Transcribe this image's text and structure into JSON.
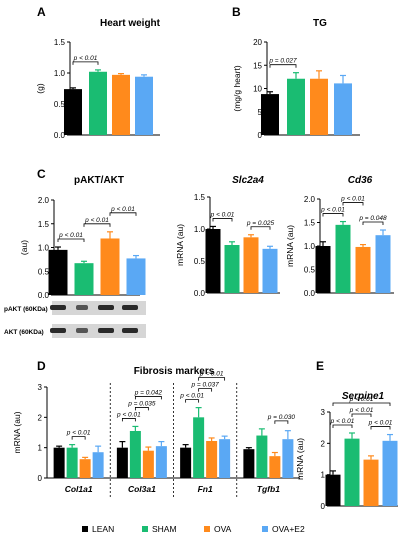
{
  "colors": {
    "LEAN": "#000000",
    "SHAM": "#1abc72",
    "OVA": "#ff8a1c",
    "OVA+E2": "#5aa8f4"
  },
  "panel_letters": [
    "A",
    "B",
    "C",
    "D",
    "E"
  ],
  "legend": [
    "LEAN",
    "SHAM",
    "OVA",
    "OVA+E2"
  ],
  "blots": {
    "pakt_label": "pAKT (60KDa)",
    "akt_label": "AKT (60KDa)"
  },
  "chart_data": [
    {
      "id": "A",
      "type": "bar",
      "title": "Heart weight",
      "title_italic": false,
      "xlabel": "",
      "ylabel": "(g)",
      "ylim": [
        0,
        1.5
      ],
      "yticks": [
        "0.0",
        "0.5",
        "1.0",
        "1.5"
      ],
      "categories": [
        "LEAN",
        "SHAM",
        "OVA",
        "OVA+E2"
      ],
      "values": [
        0.74,
        1.02,
        0.97,
        0.94
      ],
      "errors": [
        0.02,
        0.03,
        0.02,
        0.03
      ],
      "annotations": [
        {
          "text": "p < 0.01",
          "from": "LEAN",
          "to": "SHAM"
        }
      ]
    },
    {
      "id": "B",
      "type": "bar",
      "title": "TG",
      "title_italic": false,
      "xlabel": "",
      "ylabel": "(mg/g heart)",
      "ylim": [
        0,
        20
      ],
      "yticks": [
        "0",
        "5",
        "10",
        "15",
        "20"
      ],
      "categories": [
        "LEAN",
        "SHAM",
        "OVA",
        "OVA+E2"
      ],
      "values": [
        8.8,
        12.1,
        12.1,
        11.1
      ],
      "errors": [
        0.5,
        1.3,
        1.7,
        1.7
      ],
      "annotations": [
        {
          "text": "p = 0.027",
          "from": "LEAN",
          "to": "SHAM"
        }
      ]
    },
    {
      "id": "C1",
      "type": "bar",
      "title": "pAKT/AKT",
      "title_italic": false,
      "xlabel": "",
      "ylabel": "(au)",
      "ylim": [
        0,
        2.0
      ],
      "yticks": [
        "0.0",
        "0.5",
        "1.0",
        "1.5",
        "2.0"
      ],
      "categories": [
        "LEAN",
        "SHAM",
        "OVA",
        "OVA+E2"
      ],
      "values": [
        0.95,
        0.67,
        1.19,
        0.77
      ],
      "errors": [
        0.06,
        0.04,
        0.14,
        0.06
      ],
      "annotations": [
        {
          "text": "p < 0.01",
          "from": "LEAN",
          "to": "SHAM"
        },
        {
          "text": "p < 0.01",
          "from": "SHAM",
          "to": "OVA"
        },
        {
          "text": "p < 0.01",
          "from": "OVA",
          "to": "OVA+E2"
        }
      ]
    },
    {
      "id": "C2",
      "type": "bar",
      "title": "Slc2a4",
      "title_italic": true,
      "xlabel": "",
      "ylabel": "mRNA (au)",
      "ylim": [
        0,
        1.5
      ],
      "yticks": [
        "0.0",
        "0.5",
        "1.0",
        "1.5"
      ],
      "categories": [
        "LEAN",
        "SHAM",
        "OVA",
        "OVA+E2"
      ],
      "values": [
        1.0,
        0.75,
        0.87,
        0.69
      ],
      "errors": [
        0.04,
        0.05,
        0.04,
        0.04
      ],
      "annotations": [
        {
          "text": "p < 0.01",
          "from": "LEAN",
          "to": "SHAM"
        },
        {
          "text": "p = 0.025",
          "from": "OVA",
          "to": "OVA+E2"
        }
      ]
    },
    {
      "id": "C3",
      "type": "bar",
      "title": "Cd36",
      "title_italic": true,
      "xlabel": "",
      "ylabel": "mRNA (au)",
      "ylim": [
        0,
        2.0
      ],
      "yticks": [
        "0.0",
        "0.5",
        "1.0",
        "1.5",
        "2.0"
      ],
      "categories": [
        "LEAN",
        "SHAM",
        "OVA",
        "OVA+E2"
      ],
      "values": [
        1.0,
        1.45,
        0.98,
        1.23
      ],
      "errors": [
        0.09,
        0.07,
        0.05,
        0.11
      ],
      "annotations": [
        {
          "text": "p < 0.01",
          "from": "LEAN",
          "to": "SHAM"
        },
        {
          "text": "p < 0.01",
          "from": "SHAM",
          "to": "OVA"
        },
        {
          "text": "p = 0.048",
          "from": "OVA",
          "to": "OVA+E2"
        }
      ]
    },
    {
      "id": "D",
      "type": "bar",
      "title": "Fibrosis markers",
      "title_italic": false,
      "xlabel": "",
      "ylabel": "mRNA (au)",
      "ylim": [
        0,
        3
      ],
      "yticks": [
        "0",
        "1",
        "2",
        "3"
      ],
      "series_names": [
        "LEAN",
        "SHAM",
        "OVA",
        "OVA+E2"
      ],
      "groups": [
        {
          "label": "Col1a1",
          "values": [
            1.0,
            1.0,
            0.62,
            0.85
          ],
          "errors": [
            0.05,
            0.1,
            0.06,
            0.2
          ],
          "annotations": [
            {
              "text": "p < 0.01",
              "from": "SHAM",
              "to": "OVA"
            }
          ]
        },
        {
          "label": "Col3a1",
          "values": [
            1.0,
            1.55,
            0.9,
            1.05
          ],
          "errors": [
            0.2,
            0.15,
            0.12,
            0.15
          ],
          "annotations": [
            {
              "text": "p < 0.01",
              "from": "LEAN",
              "to": "SHAM"
            },
            {
              "text": "p = 0.035",
              "from": "SHAM",
              "to": "OVA"
            },
            {
              "text": "p = 0.042",
              "from": "SHAM",
              "to": "OVA+E2"
            }
          ]
        },
        {
          "label": "Fn1",
          "values": [
            1.0,
            2.0,
            1.22,
            1.28
          ],
          "errors": [
            0.1,
            0.32,
            0.1,
            0.1
          ],
          "annotations": [
            {
              "text": "p < 0.01",
              "from": "LEAN",
              "to": "SHAM"
            },
            {
              "text": "p = 0.037",
              "from": "SHAM",
              "to": "OVA"
            },
            {
              "text": "p < 0.01",
              "from": "SHAM",
              "to": "OVA+E2"
            }
          ]
        },
        {
          "label": "Tgfb1",
          "values": [
            0.95,
            1.4,
            0.72,
            1.28
          ],
          "errors": [
            0.05,
            0.22,
            0.12,
            0.28
          ],
          "annotations": [
            {
              "text": "p = 0.030",
              "from": "OVA",
              "to": "OVA+E2"
            }
          ]
        }
      ]
    },
    {
      "id": "E",
      "type": "bar",
      "title": "Serpine1",
      "title_italic": true,
      "xlabel": "",
      "ylabel": "mRNA (au)",
      "ylim": [
        0,
        3
      ],
      "yticks": [
        "0",
        "1",
        "2",
        "3"
      ],
      "categories": [
        "LEAN",
        "SHAM",
        "OVA",
        "OVA+E2"
      ],
      "values": [
        1.0,
        2.15,
        1.48,
        2.08
      ],
      "errors": [
        0.12,
        0.18,
        0.12,
        0.2
      ],
      "annotations": [
        {
          "text": "p < 0.01",
          "from": "LEAN",
          "to": "SHAM"
        },
        {
          "text": "p < 0.01",
          "from": "SHAM",
          "to": "OVA"
        },
        {
          "text": "p < 0.01",
          "from": "LEAN",
          "to": "OVA+E2"
        },
        {
          "text": "p < 0.01",
          "from": "OVA",
          "to": "OVA+E2"
        }
      ]
    }
  ]
}
